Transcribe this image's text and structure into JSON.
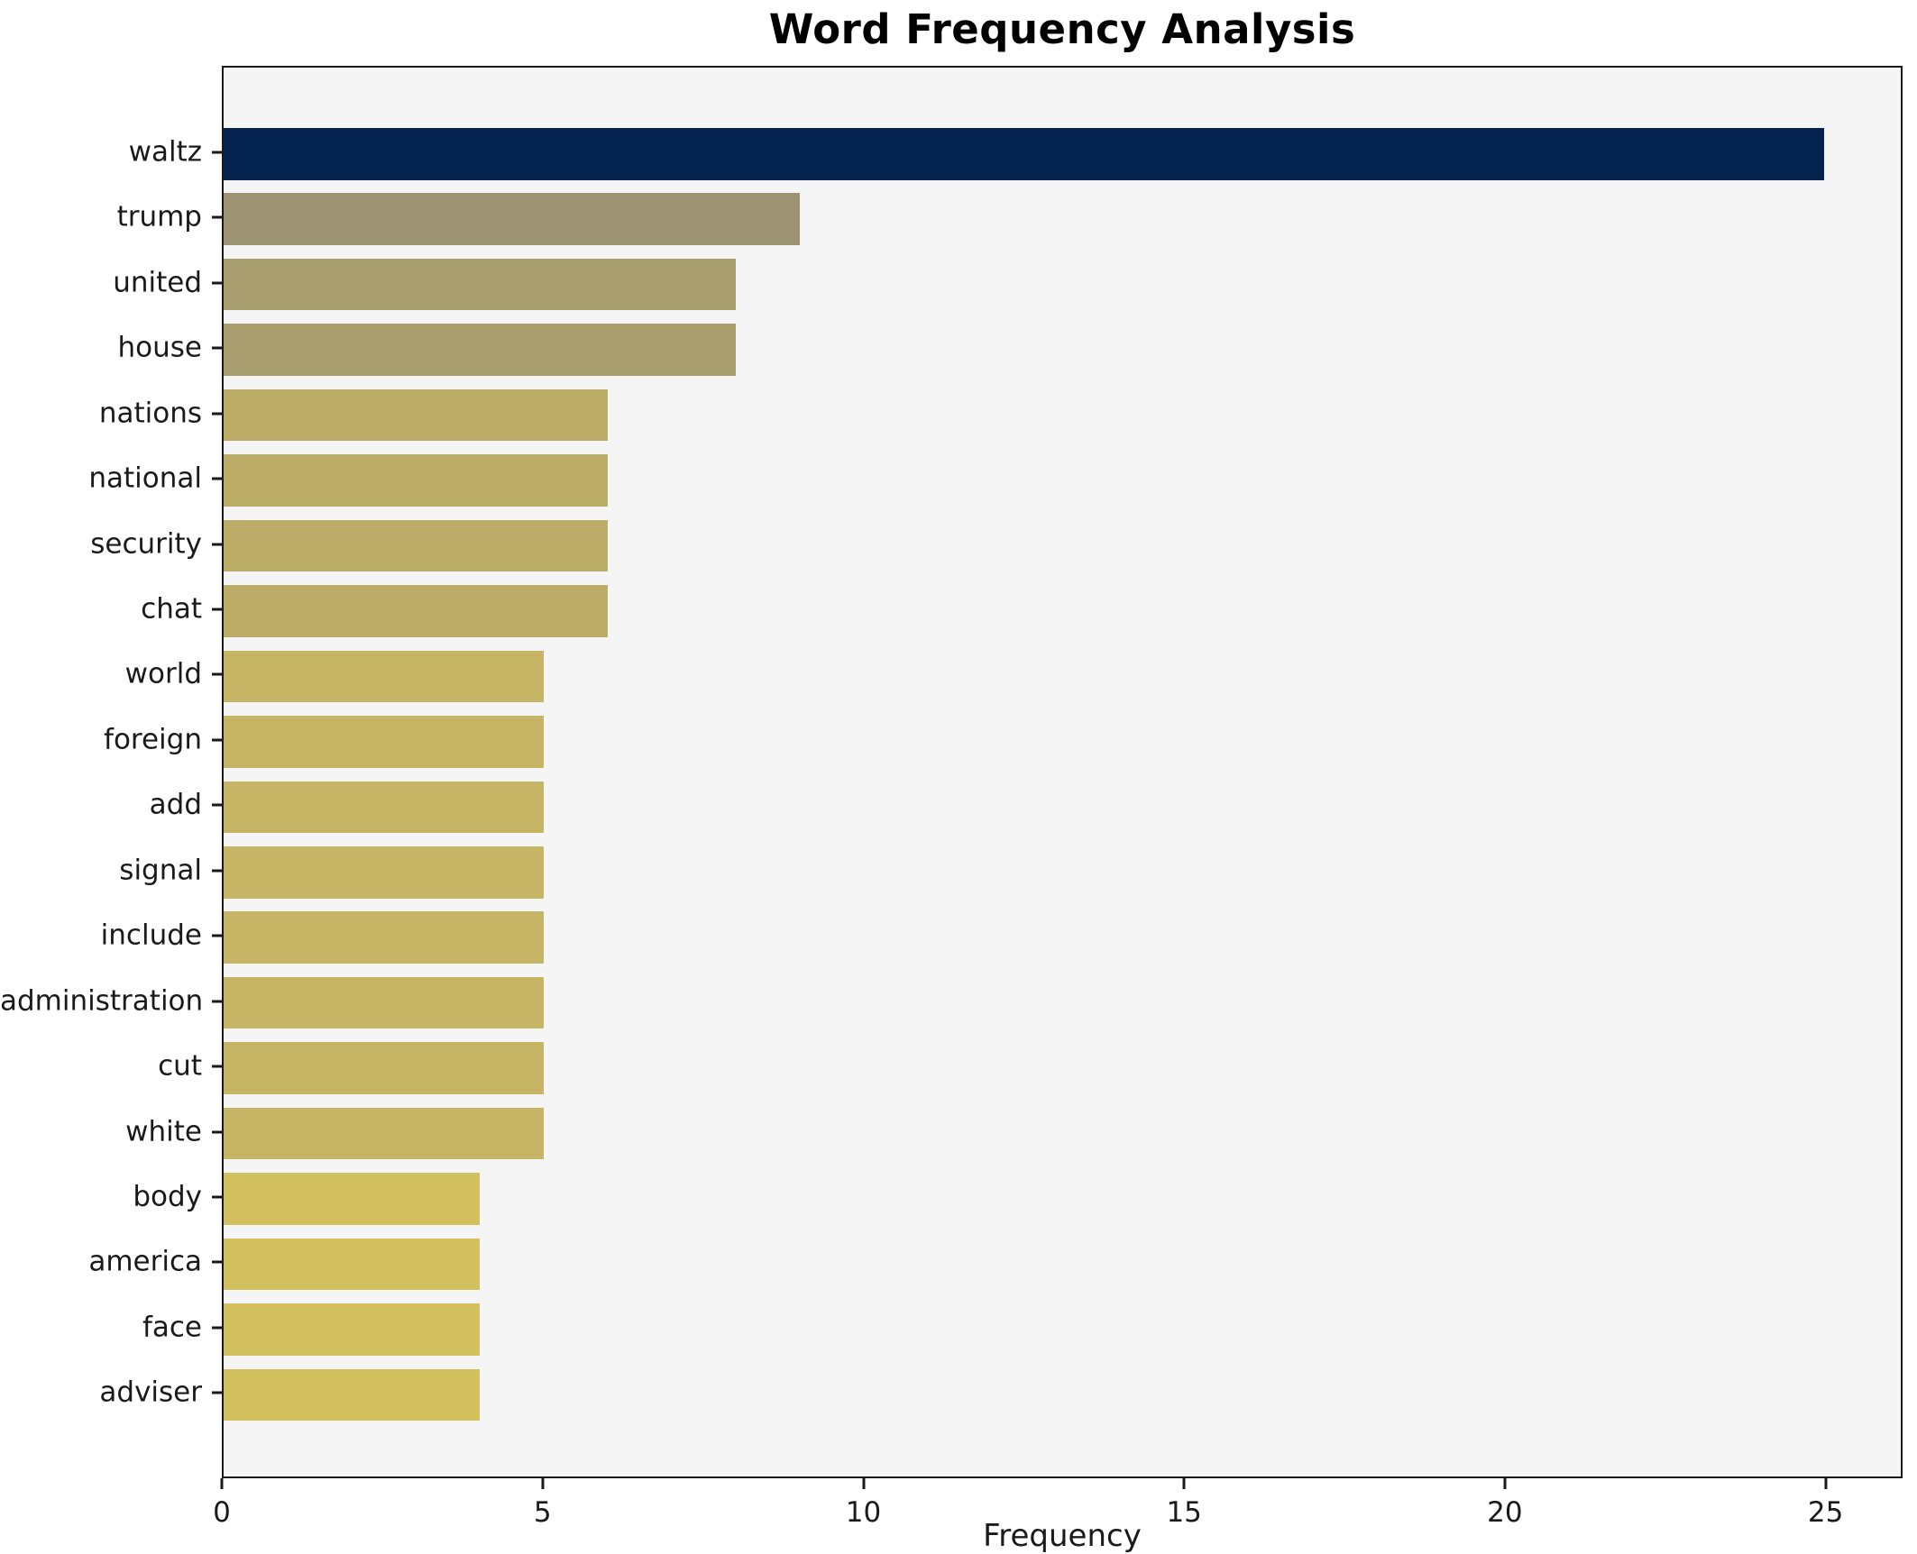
{
  "chart_data": {
    "type": "bar",
    "orientation": "horizontal",
    "title": "Word Frequency Analysis",
    "xlabel": "Frequency",
    "ylabel": "",
    "categories": [
      "waltz",
      "trump",
      "united",
      "house",
      "nations",
      "national",
      "security",
      "chat",
      "world",
      "foreign",
      "add",
      "signal",
      "include",
      "administration",
      "cut",
      "white",
      "body",
      "america",
      "face",
      "adviser"
    ],
    "values": [
      25,
      9,
      8,
      8,
      6,
      6,
      6,
      6,
      5,
      5,
      5,
      5,
      5,
      5,
      5,
      5,
      4,
      4,
      4,
      4
    ],
    "bar_colors": [
      "#03234e",
      "#9c9372",
      "#a99e6e",
      "#a99e6e",
      "#bcae68",
      "#bcae68",
      "#bcae68",
      "#bcae68",
      "#c5b565",
      "#c5b565",
      "#c5b565",
      "#c5b565",
      "#c5b565",
      "#c5b565",
      "#c5b565",
      "#c5b565",
      "#d1c05d",
      "#d1c05d",
      "#d1c05d",
      "#d1c05d"
    ],
    "xlim": [
      0,
      26.2
    ],
    "x_ticks": [
      0,
      5,
      10,
      15,
      20,
      25
    ],
    "x_tick_labels": [
      "0",
      "5",
      "10",
      "15",
      "20",
      "25"
    ],
    "grid": false,
    "legend": null,
    "plot_background": "#f5f5f6",
    "figure_background": "#ffffff",
    "spine_color": "#1a1a1a"
  }
}
